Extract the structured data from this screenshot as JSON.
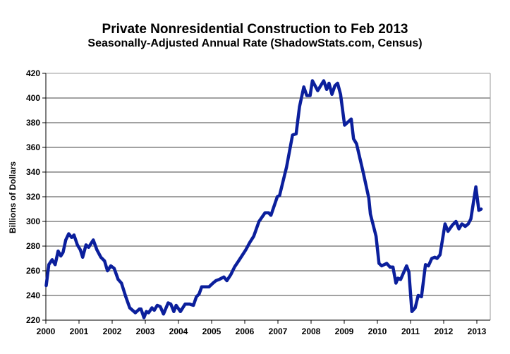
{
  "chart_data": {
    "type": "line",
    "title": "Private Nonresidential Construction to Feb 2013",
    "subtitle": "Seasonally-Adjusted Annual Rate (ShadowStats.com, Census)",
    "xlabel": "",
    "ylabel": "Billions of Dollars",
    "xlim": [
      2000,
      2013.4
    ],
    "ylim": [
      220,
      420
    ],
    "grid": true,
    "legend": "none",
    "line_color": "#0b1f9c",
    "x_ticks": [
      "2000",
      "2001",
      "2002",
      "2003",
      "2004",
      "2005",
      "2006",
      "2007",
      "2008",
      "2009",
      "2010",
      "2011",
      "2012",
      "2013"
    ],
    "y_ticks": [
      "220",
      "240",
      "260",
      "280",
      "300",
      "320",
      "340",
      "360",
      "380",
      "400",
      "420"
    ],
    "series": [
      {
        "name": "Private Nonresidential Construction",
        "x": [
          2000.01,
          2000.09,
          2000.19,
          2000.28,
          2000.37,
          2000.45,
          2000.52,
          2000.6,
          2000.69,
          2000.78,
          2000.85,
          2000.95,
          2001.04,
          2001.11,
          2001.21,
          2001.29,
          2001.43,
          2001.54,
          2001.66,
          2001.77,
          2001.86,
          2001.96,
          2002.06,
          2002.18,
          2002.28,
          2002.41,
          2002.53,
          2002.7,
          2002.82,
          2002.87,
          2002.96,
          2003.03,
          2003.1,
          2003.2,
          2003.27,
          2003.36,
          2003.45,
          2003.55,
          2003.69,
          2003.77,
          2003.86,
          2003.93,
          2004.06,
          2004.2,
          2004.34,
          2004.45,
          2004.54,
          2004.62,
          2004.7,
          2004.8,
          2004.92,
          2005.04,
          2005.13,
          2005.23,
          2005.37,
          2005.46,
          2005.58,
          2005.69,
          2005.79,
          2005.91,
          2006.03,
          2006.15,
          2006.27,
          2006.43,
          2006.61,
          2006.72,
          2006.79,
          2006.98,
          2007.05,
          2007.26,
          2007.44,
          2007.55,
          2007.65,
          2007.78,
          2007.87,
          2007.97,
          2008.04,
          2008.2,
          2008.38,
          2008.47,
          2008.54,
          2008.63,
          2008.72,
          2008.8,
          2008.89,
          2009.01,
          2009.21,
          2009.28,
          2009.37,
          2009.57,
          2009.74,
          2009.79,
          2009.96,
          2010.05,
          2010.13,
          2010.28,
          2010.38,
          2010.47,
          2010.56,
          2010.62,
          2010.7,
          2010.88,
          2010.95,
          2011.04,
          2011.14,
          2011.23,
          2011.33,
          2011.45,
          2011.54,
          2011.64,
          2011.73,
          2011.8,
          2011.89,
          2012.04,
          2012.13,
          2012.26,
          2012.37,
          2012.46,
          2012.55,
          2012.65,
          2012.74,
          2012.82,
          2012.97,
          2013.06,
          2013.13
        ],
        "values": [
          248,
          265,
          269,
          265,
          276,
          272,
          275,
          285,
          290,
          287,
          289,
          281,
          277,
          271,
          281,
          279,
          285,
          277,
          271,
          268,
          260,
          264,
          262,
          253,
          250,
          239,
          230,
          226,
          229,
          229,
          222,
          227,
          226,
          230,
          228,
          232,
          231,
          225,
          234,
          233,
          227,
          232,
          227,
          233,
          233,
          232,
          239,
          241,
          247,
          247,
          247,
          250,
          252,
          253,
          255,
          252,
          257,
          263,
          267,
          272,
          277,
          283,
          288,
          300,
          307,
          307,
          305,
          320,
          321,
          344,
          370,
          371,
          393,
          409,
          402,
          402,
          414,
          406,
          414,
          407,
          412,
          403,
          410,
          412,
          403,
          378,
          383,
          367,
          363,
          340,
          319,
          306,
          288,
          266,
          264,
          266,
          263,
          263,
          250,
          254,
          253,
          264,
          259,
          227,
          230,
          240,
          239,
          265,
          264,
          270,
          271,
          270,
          273,
          298,
          292,
          297,
          300,
          294,
          298,
          296,
          298,
          302,
          328,
          309,
          310
        ]
      }
    ]
  }
}
